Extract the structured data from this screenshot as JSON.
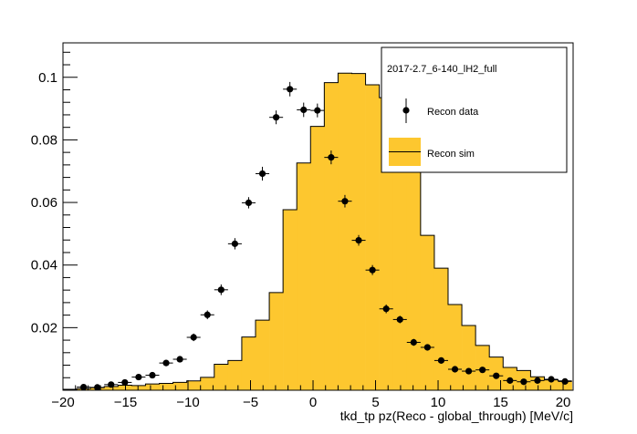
{
  "chart_data": {
    "type": "histogram",
    "xlabel": "tkd_tp pz(Reco - global_through) [MeV/c]",
    "ylabel": "",
    "xlim": [
      -20,
      20.8
    ],
    "ylim": [
      0,
      0.111
    ],
    "x_ticks": [
      -20,
      -15,
      -10,
      -5,
      0,
      5,
      10,
      15,
      20
    ],
    "x_tick_labels": [
      "−20",
      "−15",
      "−10",
      "−5",
      "0",
      "5",
      "10",
      "15",
      "20"
    ],
    "y_ticks": [
      0.02,
      0.04,
      0.06,
      0.08,
      0.1
    ],
    "y_tick_labels": [
      "0.02",
      "0.04",
      "0.06",
      "0.08",
      "0.1"
    ],
    "grid": false,
    "legend": {
      "title": "2017-2.7_6-140_lH2_full",
      "placement": "top-right",
      "entries": [
        "Recon data",
        "Recon sim"
      ]
    },
    "colors": {
      "sim_fill": "#fdc72f",
      "data_marker": "#000000"
    },
    "bin_width": 1.1,
    "series": [
      {
        "name": "Recon sim",
        "kind": "filled-histogram",
        "bin_edges": [
          -20.0,
          -18.9,
          -17.8,
          -16.7,
          -15.6,
          -14.5,
          -13.4,
          -12.3,
          -11.2,
          -10.1,
          -9.0,
          -7.9,
          -6.8,
          -5.7,
          -4.6,
          -3.5,
          -2.4,
          -1.3,
          -0.2,
          0.9,
          2.0,
          3.1,
          4.2,
          5.3,
          6.4,
          7.5,
          8.6,
          9.7,
          10.8,
          11.9,
          13.0,
          14.1,
          15.2,
          16.3,
          17.4,
          18.5,
          19.6,
          20.7
        ],
        "values": [
          0.0003,
          0.0005,
          0.0008,
          0.0012,
          0.0016,
          0.0015,
          0.002,
          0.0022,
          0.0025,
          0.003,
          0.0041,
          0.0083,
          0.0095,
          0.017,
          0.0224,
          0.0312,
          0.0577,
          0.0726,
          0.0843,
          0.0983,
          0.1013,
          0.1012,
          0.0976,
          0.0935,
          0.0885,
          0.0699,
          0.0495,
          0.039,
          0.0274,
          0.0207,
          0.0143,
          0.0106,
          0.0073,
          0.0063,
          0.0043,
          0.0033,
          0.003
        ]
      },
      {
        "name": "Recon data",
        "kind": "points-with-errors",
        "x": [
          -18.35,
          -17.25,
          -16.15,
          -15.05,
          -13.95,
          -12.85,
          -11.75,
          -10.65,
          -9.55,
          -8.45,
          -7.35,
          -6.25,
          -5.15,
          -4.05,
          -2.95,
          -1.85,
          -0.75,
          0.35,
          1.45,
          2.55,
          3.65,
          4.75,
          5.85,
          6.95,
          8.05,
          9.15,
          10.25,
          11.35,
          12.45,
          13.55,
          14.65,
          15.75,
          16.85,
          17.95,
          19.05,
          20.15
        ],
        "y": [
          0.001,
          0.0009,
          0.0018,
          0.0025,
          0.0042,
          0.0048,
          0.0087,
          0.0099,
          0.0169,
          0.0241,
          0.0321,
          0.0468,
          0.0599,
          0.0692,
          0.0872,
          0.0962,
          0.0896,
          0.0894,
          0.0744,
          0.0604,
          0.0479,
          0.0384,
          0.026,
          0.0226,
          0.0153,
          0.0137,
          0.0095,
          0.0067,
          0.0061,
          0.0065,
          0.0046,
          0.0031,
          0.0027,
          0.0031,
          0.0035,
          0.0028
        ],
        "y_err": [
          0.0003,
          0.0003,
          0.0004,
          0.0005,
          0.0006,
          0.0007,
          0.0009,
          0.0009,
          0.0012,
          0.0014,
          0.0017,
          0.0018,
          0.0018,
          0.0022,
          0.0022,
          0.0023,
          0.0023,
          0.0022,
          0.0022,
          0.002,
          0.0017,
          0.0016,
          0.0014,
          0.0012,
          0.0011,
          0.001,
          0.0008,
          0.0007,
          0.0007,
          0.0006,
          0.0006,
          0.0004,
          0.0004,
          0.0004,
          0.0004,
          0.0004
        ]
      }
    ]
  }
}
